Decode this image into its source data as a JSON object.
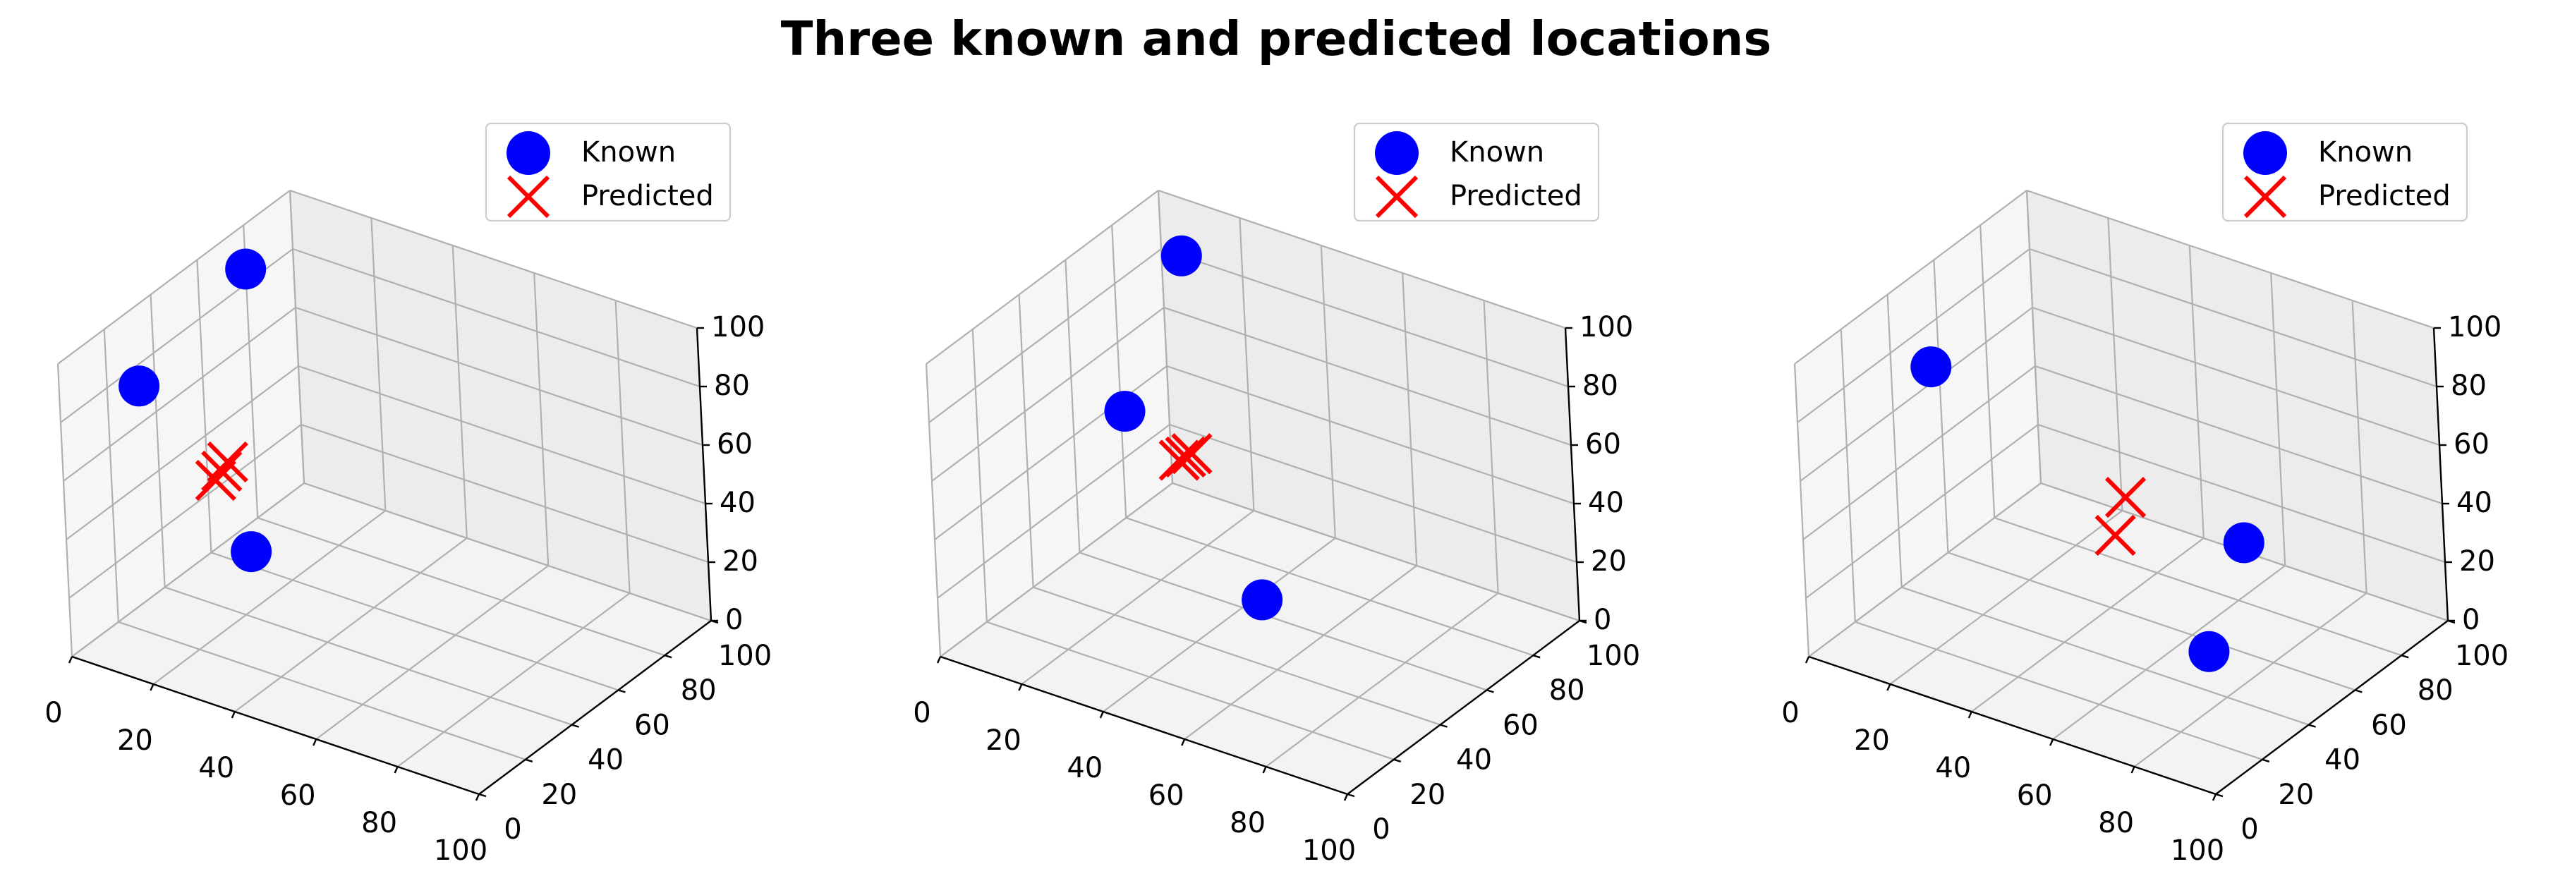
{
  "figure": {
    "title": "Three known and predicted locations"
  },
  "colors": {
    "known": "#0000ff",
    "predicted": "#ff0000",
    "pane_left": "#f6f6f6",
    "pane_right": "#ececec",
    "pane_floor": "#f3f3f3",
    "grid": "#b0b0b0"
  },
  "chart_data": [
    {
      "type": "scatter",
      "projection": "3d",
      "title": "",
      "xlim": [
        0,
        100
      ],
      "ylim": [
        0,
        100
      ],
      "zlim": [
        0,
        100
      ],
      "xticks": [
        0,
        20,
        40,
        60,
        80,
        100
      ],
      "yticks": [
        0,
        20,
        40,
        60,
        80,
        100
      ],
      "zticks": [
        0,
        20,
        40,
        60,
        80,
        100
      ],
      "grid": true,
      "legend": {
        "placement": "top-right",
        "entries": [
          "Known",
          "Predicted"
        ]
      },
      "series": [
        {
          "name": "Known",
          "marker": "circle",
          "color": "#0000ff",
          "points": [
            [
              10,
              60,
              5
            ],
            [
              5,
              25,
              80
            ],
            [
              0,
              80,
              85
            ]
          ]
        },
        {
          "name": "Predicted",
          "marker": "x",
          "color": "#ff0000",
          "points": [
            [
              5,
              55,
              30
            ],
            [
              6,
              56,
              33
            ],
            [
              7,
              57,
              36
            ]
          ]
        }
      ]
    },
    {
      "type": "scatter",
      "projection": "3d",
      "title": "",
      "xlim": [
        0,
        100
      ],
      "ylim": [
        0,
        100
      ],
      "zlim": [
        0,
        100
      ],
      "xticks": [
        0,
        20,
        40,
        60,
        80,
        100
      ],
      "yticks": [
        0,
        20,
        40,
        60,
        80,
        100
      ],
      "zticks": [
        0,
        20,
        40,
        60,
        80,
        100
      ],
      "grid": true,
      "legend": {
        "placement": "top-right",
        "entries": [
          "Known",
          "Predicted"
        ]
      },
      "series": [
        {
          "name": "Known",
          "marker": "circle",
          "color": "#0000ff",
          "points": [
            [
              45,
              60,
              5
            ],
            [
              10,
              65,
              50
            ],
            [
              5,
              100,
              80
            ]
          ]
        },
        {
          "name": "Predicted",
          "marker": "x",
          "color": "#ff0000",
          "points": [
            [
              20,
              70,
              35
            ],
            [
              21,
              71,
              36
            ],
            [
              22,
              72,
              37
            ]
          ]
        }
      ]
    },
    {
      "type": "scatter",
      "projection": "3d",
      "title": "",
      "xlim": [
        0,
        100
      ],
      "ylim": [
        0,
        100
      ],
      "zlim": [
        0,
        100
      ],
      "xticks": [
        0,
        20,
        40,
        60,
        80,
        100
      ],
      "yticks": [
        0,
        20,
        40,
        60,
        80,
        100
      ],
      "zticks": [
        0,
        20,
        40,
        60,
        80,
        100
      ],
      "grid": true,
      "legend": {
        "placement": "top-right",
        "entries": [
          "Known",
          "Predicted"
        ]
      },
      "series": [
        {
          "name": "Known",
          "marker": "circle",
          "color": "#0000ff",
          "points": [
            [
              10,
              40,
              80
            ],
            [
              70,
              50,
              5
            ],
            [
              65,
              75,
              25
            ]
          ]
        },
        {
          "name": "Predicted",
          "marker": "x",
          "color": "#ff0000",
          "points": [
            [
              45,
              55,
              30
            ],
            [
              45,
              60,
              40
            ]
          ]
        }
      ]
    }
  ]
}
